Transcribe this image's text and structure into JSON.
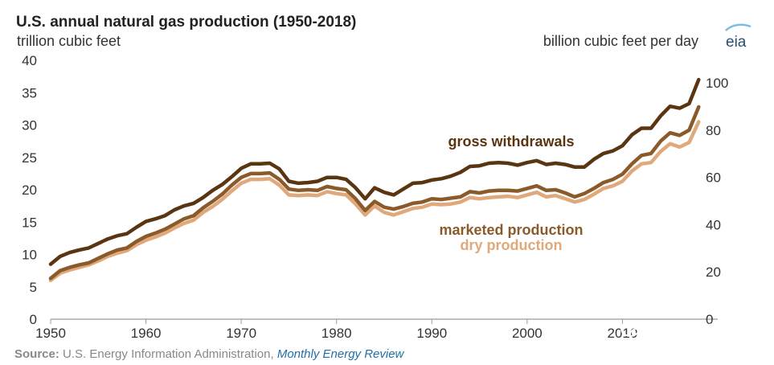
{
  "chart_data": {
    "type": "line",
    "title": "U.S. annual natural gas production (1950-2018)",
    "ylabel": "trillion cubic feet",
    "y2label": "billion cubic feet per day",
    "x": [
      1950,
      1951,
      1952,
      1953,
      1954,
      1955,
      1956,
      1957,
      1958,
      1959,
      1960,
      1961,
      1962,
      1963,
      1964,
      1965,
      1966,
      1967,
      1968,
      1969,
      1970,
      1971,
      1972,
      1973,
      1974,
      1975,
      1976,
      1977,
      1978,
      1979,
      1980,
      1981,
      1982,
      1983,
      1984,
      1985,
      1986,
      1987,
      1988,
      1989,
      1990,
      1991,
      1992,
      1993,
      1994,
      1995,
      1996,
      1997,
      1998,
      1999,
      2000,
      2001,
      2002,
      2003,
      2004,
      2005,
      2006,
      2007,
      2008,
      2009,
      2010,
      2011,
      2012,
      2013,
      2014,
      2015,
      2016,
      2017,
      2018
    ],
    "xlim": [
      1950,
      2020
    ],
    "ylim": [
      0,
      40
    ],
    "y2lim": [
      0,
      109.6
    ],
    "xticks": [
      "1950",
      "1960",
      "1970",
      "1980",
      "1990",
      "2000",
      "2010"
    ],
    "yticks": [
      "0",
      "5",
      "10",
      "15",
      "20",
      "25",
      "30",
      "35",
      "40"
    ],
    "y2ticks": [
      "0",
      "20",
      "40",
      "60",
      "80",
      "100"
    ],
    "series": [
      {
        "name": "gross withdrawals",
        "color": "#5a3511",
        "values": [
          8.5,
          9.7,
          10.3,
          10.7,
          11.0,
          11.7,
          12.4,
          12.9,
          13.2,
          14.2,
          15.1,
          15.5,
          16.0,
          16.9,
          17.5,
          17.9,
          18.8,
          19.9,
          20.8,
          22.0,
          23.3,
          24.0,
          24.0,
          24.1,
          23.2,
          21.3,
          21.0,
          21.1,
          21.3,
          21.9,
          21.9,
          21.6,
          20.3,
          18.6,
          20.3,
          19.6,
          19.2,
          20.1,
          21.0,
          21.1,
          21.5,
          21.7,
          22.1,
          22.7,
          23.6,
          23.7,
          24.1,
          24.2,
          24.1,
          23.8,
          24.2,
          24.5,
          23.9,
          24.1,
          23.9,
          23.5,
          23.5,
          24.7,
          25.6,
          26.0,
          26.8,
          28.5,
          29.5,
          29.5,
          31.4,
          32.9,
          32.6,
          33.3,
          37.0
        ]
      },
      {
        "name": "marketed production",
        "color": "#8b5a2b",
        "values": [
          6.3,
          7.5,
          8.0,
          8.4,
          8.7,
          9.4,
          10.1,
          10.7,
          11.0,
          12.0,
          12.8,
          13.3,
          13.9,
          14.7,
          15.5,
          16.0,
          17.2,
          18.2,
          19.3,
          20.7,
          21.9,
          22.5,
          22.5,
          22.6,
          21.6,
          20.1,
          19.9,
          20.0,
          19.9,
          20.5,
          20.2,
          20.0,
          18.6,
          16.8,
          18.2,
          17.3,
          17.0,
          17.4,
          17.9,
          18.1,
          18.6,
          18.5,
          18.7,
          18.9,
          19.7,
          19.5,
          19.8,
          19.9,
          19.9,
          19.8,
          20.2,
          20.6,
          19.9,
          20.0,
          19.5,
          18.9,
          19.4,
          20.2,
          21.1,
          21.6,
          22.4,
          24.0,
          25.3,
          25.6,
          27.5,
          28.8,
          28.4,
          29.2,
          32.8
        ]
      },
      {
        "name": "dry production",
        "color": "#e0a97c",
        "values": [
          6.0,
          7.1,
          7.6,
          8.0,
          8.4,
          9.0,
          9.7,
          10.2,
          10.6,
          11.5,
          12.2,
          12.7,
          13.3,
          14.1,
          14.8,
          15.3,
          16.5,
          17.4,
          18.5,
          19.8,
          21.0,
          21.6,
          21.6,
          21.7,
          20.7,
          19.2,
          19.1,
          19.2,
          19.1,
          19.7,
          19.4,
          19.2,
          17.8,
          16.1,
          17.5,
          16.5,
          16.1,
          16.6,
          17.1,
          17.3,
          17.8,
          17.7,
          17.8,
          18.1,
          18.8,
          18.6,
          18.8,
          18.9,
          19.0,
          18.8,
          19.2,
          19.6,
          18.9,
          19.1,
          18.6,
          18.1,
          18.5,
          19.3,
          20.2,
          20.6,
          21.3,
          22.9,
          24.0,
          24.2,
          25.9,
          27.1,
          26.6,
          27.3,
          30.5
        ]
      }
    ],
    "legend_placement": "inline labels",
    "grid": false
  },
  "logo": "eia",
  "source": {
    "label": "Source:",
    "text": "U.S. Energy Information Administration,",
    "publication": "Monthly Energy Review"
  },
  "watermark": "大地采集者"
}
